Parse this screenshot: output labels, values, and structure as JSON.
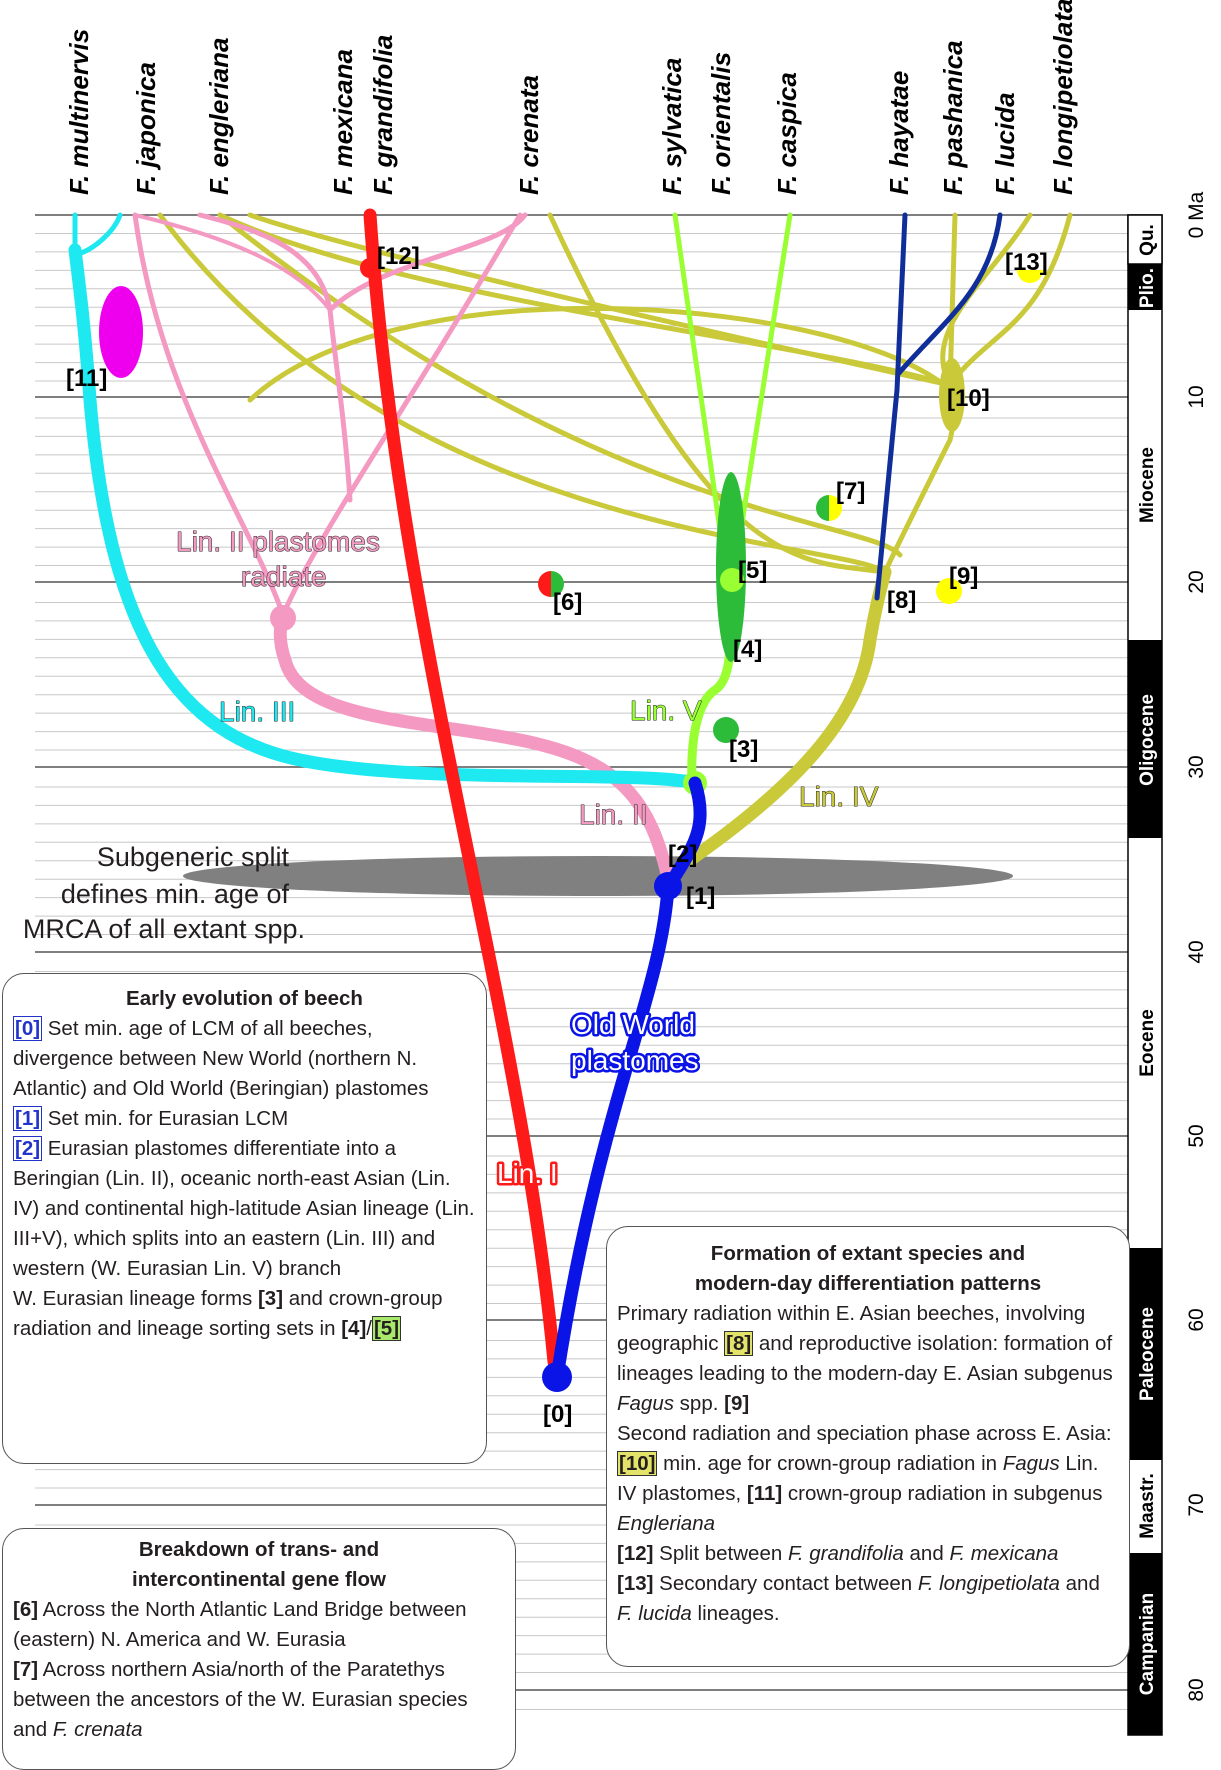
{
  "species": [
    "F. multinervis",
    "F. japonica",
    "F. engleriana",
    "F. mexicana",
    "F. grandifolia",
    "F. crenata",
    "F. sylvatica",
    "F. orientalis",
    "F. caspica",
    "F. hayatae",
    "F. pashanica",
    "F. lucida",
    "F. longipetiolata"
  ],
  "axis": {
    "unit_label": "0 Ma",
    "ticks": [
      "10",
      "20",
      "30",
      "40",
      "50",
      "60",
      "70",
      "80"
    ]
  },
  "epochs": [
    "Qu.",
    "Plio.",
    "Miocene",
    "Oligocene",
    "Eocene",
    "Paleocene",
    "Maastr.",
    "Campanian"
  ],
  "lineage_labels": {
    "lin1": "Lin. I",
    "lin2": "Lin. II",
    "lin3": "Lin. III",
    "lin4": "Lin. IV",
    "lin5": "Lin. V",
    "lin2_radiate_1": "Lin. II plastomes",
    "lin2_radiate_2": "radiate",
    "old_world_1": "Old World",
    "old_world_2": "plastomes"
  },
  "nodes": {
    "n0": "[0]",
    "n1": "[1]",
    "n2": "[2]",
    "n3": "[3]",
    "n4": "[4]",
    "n5": "[5]",
    "n6": "[6]",
    "n7": "[7]",
    "n8": "[8]",
    "n9": "[9]",
    "n10": "[10]",
    "n11": "[11]",
    "n12": "[12]",
    "n13": "[13]"
  },
  "subgeneric_caption": [
    "Subgeneric split",
    "defines min. age of",
    "MRCA of all extant spp."
  ],
  "box_early": {
    "title": "Early evolution of beech",
    "tag0": "[0]",
    "text0": " Set min. age of LCM of all beeches, divergence between New World (northern N. Atlantic) and Old World (Beringian) plastomes",
    "tag1": "[1]",
    "text1": " Set min. for Eurasian LCM",
    "tag2": "[2]",
    "text2": " Eurasian plastomes differentiate into a Beringian (Lin. II), oceanic north-east Asian (Lin. IV) and continental high-latitude Asian lineage (Lin. III+V), which splits into an eastern (Lin. III) and western (W. Eurasian Lin. V) branch",
    "text3a": "W. Eurasian lineage forms ",
    "tag3": "[3]",
    "text3b": " and crown-group radiation and lineage sorting sets in ",
    "tag4": "[4]",
    "slash": "/",
    "tag5": "[5]"
  },
  "box_gene": {
    "title1": "Breakdown of trans- and",
    "title2": "intercontinental gene flow",
    "tag6": "[6]",
    "text6": " Across the North Atlantic Land Bridge between (eastern) N. America and W. Eurasia",
    "tag7": "[7]",
    "text7": " Across northern Asia/north of the Paratethys between the ancestors of the W. Eurasian species and ",
    "text7_species": "F. crenata"
  },
  "box_extant": {
    "title1": "Formation of extant species and",
    "title2": "modern-day differentiation patterns",
    "s1a": "Primary radiation within E. Asian beeches, involving geographic ",
    "tag8": "[8]",
    "s1b": " and reproductive isolation: formation of lineages leading to the modern-day E. Asian subgenus ",
    "fagus1": "Fagus",
    "s1c": " spp. ",
    "tag9": "[9]",
    "s2a": "Second radiation and speciation phase across E. Asia: ",
    "tag10": "[10]",
    "s2b": " min. age for crown-group radiation in ",
    "fagus2": "Fagus",
    "s2c": " Lin. IV plastomes, ",
    "tag11": "[11]",
    "s2d": "  crown-group radiation in subgenus ",
    "engleriana": "Engleriana",
    "tag12": "[12]",
    "s3a": " Split between ",
    "grandifolia": "F. grandifolia",
    "s3b": " and ",
    "mexicana": "F. mexicana",
    "tag13": "[13]",
    "s4a": " Secondary contact between ",
    "longipetiolata": "F. longipetiolata",
    "s4b": " and ",
    "lucida": "F. lucida",
    "s4c": " lineages."
  },
  "colors": {
    "lin1": "#ff1a1a",
    "old_world": "#0a14e6",
    "lin2": "#f49ac2",
    "lin3": "#1ee8f0",
    "lin4": "#c9c93a",
    "lin5": "#99ff33",
    "dark_blue": "#102e9a",
    "green": "#2dbb3a",
    "magenta": "#ee00ee",
    "yellow": "#ffff00",
    "gray": "#808080"
  }
}
